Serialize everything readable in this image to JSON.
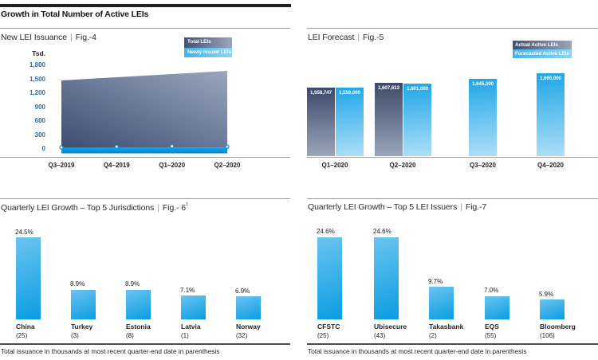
{
  "page": {
    "title": "Growth in Total Number of Active LEIs",
    "pipe": "|",
    "footnote": "Total issuance in thousands at most recent quarter-end date in parenthesis"
  },
  "colors": {
    "dark_navy": "#3d4968",
    "dark_navy_light": "#9aa5bb",
    "bright_blue": "#0b9ce2",
    "light_blue": "#6ac4f0",
    "pale_blue": "#aedff7",
    "tick_blue": "#2e6fad"
  },
  "chart_data": [
    {
      "type": "area",
      "title": "New LEI Issuance",
      "fig": "Fig.-4",
      "legend": [
        "Total LEIs",
        "Newly Issued LEIs"
      ],
      "y_unit": "Tsd.",
      "y_ticks": [
        "1,800",
        "1,500",
        "1,200",
        "900",
        "600",
        "300",
        "0"
      ],
      "ylim": [
        0,
        1800
      ],
      "x": [
        "Q3–2019",
        "Q4–2019",
        "Q1–2020",
        "Q2–2020"
      ],
      "series": [
        {
          "name": "Total LEIs",
          "values": [
            1483,
            1552,
            1621,
            1690
          ]
        },
        {
          "name": "Newly Issued LEIs",
          "values": [
            33,
            47,
            58,
            47
          ]
        }
      ]
    },
    {
      "type": "bar",
      "title": "LEI Forecast",
      "fig": "Fig.-5",
      "legend": [
        "Actual Active LEIs",
        "Forecasted Active LEIs"
      ],
      "x": [
        "Q1–2020",
        "Q2–2020",
        "Q3–2020",
        "Q4–2020"
      ],
      "series": [
        {
          "name": "Actual Active LEIs",
          "values": [
            1558747,
            1607612,
            null,
            null
          ],
          "labels": [
            "1,558,747",
            "1,607,612",
            null,
            null
          ]
        },
        {
          "name": "Forecasted Active LEIs",
          "values": [
            1559000,
            1601000,
            1645000,
            1696000
          ],
          "labels": [
            "1,559,000",
            "1,601,000",
            "1,645,000",
            "1,696,000"
          ]
        }
      ]
    },
    {
      "type": "bar",
      "title": "Quarterly LEI Growth – Top 5 Jurisdictions",
      "fig": "Fig.- 6",
      "fig_sup": "1",
      "categories": [
        "China",
        "Turkey",
        "Estonia",
        "Latvia",
        "Norway"
      ],
      "counts": [
        "(25)",
        "(3)",
        "(8)",
        "(1)",
        "(32)"
      ],
      "values": [
        24.5,
        8.9,
        8.9,
        7.1,
        6.9
      ],
      "value_labels": [
        "24.5%",
        "8.9%",
        "8.9%",
        "7.1%",
        "6.9%"
      ]
    },
    {
      "type": "bar",
      "title": "Quarterly LEI Growth – Top 5 LEI Issuers",
      "fig": "Fig.-7",
      "categories": [
        "CFSTC",
        "Ubisecure",
        "Takasbank",
        "EQS",
        "Bloomberg"
      ],
      "counts": [
        "(25)",
        "(43)",
        "(2)",
        "(55)",
        "(106)"
      ],
      "values": [
        24.6,
        24.6,
        9.7,
        7.0,
        5.9
      ],
      "value_labels": [
        "24.6%",
        "24.6%",
        "9.7%",
        "7.0%",
        "5.9%"
      ]
    }
  ]
}
